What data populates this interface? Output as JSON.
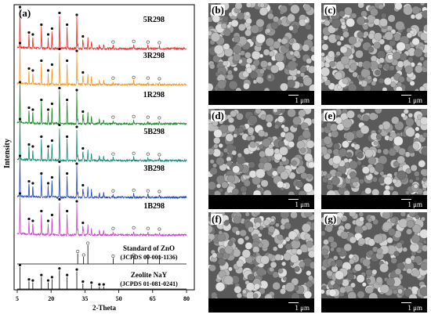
{
  "panel_a_label": "(a)",
  "chart_data": {
    "type": "line",
    "title": "",
    "xlabel": "2-Theta",
    "ylabel": "Intensity",
    "xlim": [
      5,
      80
    ],
    "xticks": [
      5,
      20,
      35,
      50,
      65,
      80
    ],
    "series": [
      {
        "name": "5R298",
        "color": "#ee2a24"
      },
      {
        "name": "3R298",
        "color": "#f39a24"
      },
      {
        "name": "1R298",
        "color": "#1b8a26"
      },
      {
        "name": "5B298",
        "color": "#138a77"
      },
      {
        "name": "3B298",
        "color": "#2547c0"
      },
      {
        "name": "1B298",
        "color": "#c846c8"
      }
    ],
    "zeolite_peaks": [
      {
        "x": 6.2,
        "h": 1.0
      },
      {
        "x": 10.2,
        "h": 0.35
      },
      {
        "x": 11.9,
        "h": 0.3
      },
      {
        "x": 15.7,
        "h": 0.55
      },
      {
        "x": 18.7,
        "h": 0.3
      },
      {
        "x": 20.4,
        "h": 0.45
      },
      {
        "x": 23.7,
        "h": 0.85
      },
      {
        "x": 27.1,
        "h": 0.55
      },
      {
        "x": 31.4,
        "h": 0.8
      },
      {
        "x": 34.1,
        "h": 0.25
      },
      {
        "x": 37.9,
        "h": 0.2
      },
      {
        "x": 41.4,
        "h": 0.12
      },
      {
        "x": 43.3,
        "h": 0.12
      }
    ],
    "zno_peaks": [
      {
        "x": 31.8,
        "h": 0.45
      },
      {
        "x": 34.4,
        "h": 0.3
      },
      {
        "x": 36.3,
        "h": 0.8
      },
      {
        "x": 47.5,
        "h": 0.25
      },
      {
        "x": 56.6,
        "h": 0.3
      },
      {
        "x": 62.9,
        "h": 0.25
      },
      {
        "x": 68.0,
        "h": 0.2
      }
    ],
    "references": [
      {
        "name": "Standard of ZnO",
        "code": "(JCPDS 00-001-1136)"
      },
      {
        "name": "Zeolite NaY",
        "code": "(JCPDS 01-081-0241)"
      }
    ]
  },
  "sem_panels": [
    {
      "label": "(b)",
      "scale": "1 μm"
    },
    {
      "label": "(c)",
      "scale": "1 μm"
    },
    {
      "label": "(d)",
      "scale": "1 μm"
    },
    {
      "label": "(e)",
      "scale": "1 μm"
    },
    {
      "label": "(f)",
      "scale": "1 μm"
    },
    {
      "label": "(g)",
      "scale": "1 μm"
    }
  ]
}
